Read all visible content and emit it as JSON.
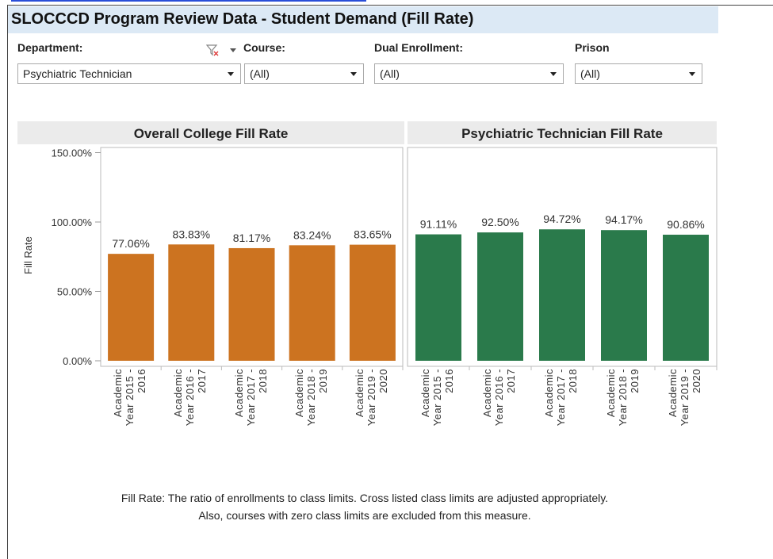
{
  "header": {
    "title": "SLOCCCD Program Review Data - Student Demand (Fill Rate)"
  },
  "filters": [
    {
      "label": "Department:",
      "value": "Psychiatric Technician"
    },
    {
      "label": "Course:",
      "value": "(All)"
    },
    {
      "label": "Dual Enrollment:",
      "value": "(All)"
    },
    {
      "label": "Prison",
      "value": "(All)"
    }
  ],
  "chart_data": [
    {
      "type": "bar",
      "title": "Overall College Fill Rate",
      "y_label": "Fill Rate",
      "color": "#cc7320",
      "categories": [
        "Academic Year 2015 - 2016",
        "Academic Year 2016 - 2017",
        "Academic Year 2017 - 2018",
        "Academic Year 2018 - 2019",
        "Academic Year 2019 - 2020"
      ],
      "values": [
        77.06,
        83.83,
        81.17,
        83.24,
        83.65
      ],
      "value_labels": [
        "77.06%",
        "83.83%",
        "81.17%",
        "83.24%",
        "83.65%"
      ],
      "ylim": [
        0,
        150
      ],
      "yticks": [
        {
          "value": 0,
          "label": "0.00%"
        },
        {
          "value": 50,
          "label": "50.00%"
        },
        {
          "value": 100,
          "label": "100.00%"
        },
        {
          "value": 150,
          "label": "150.00%"
        }
      ]
    },
    {
      "type": "bar",
      "title": "Psychiatric Technician Fill Rate",
      "color": "#2a7a4b",
      "categories": [
        "Academic Year 2015 - 2016",
        "Academic Year 2016 - 2017",
        "Academic Year 2017 - 2018",
        "Academic Year 2018 - 2019",
        "Academic Year 2019 - 2020"
      ],
      "values": [
        91.11,
        92.5,
        94.72,
        94.17,
        90.86
      ],
      "value_labels": [
        "91.11%",
        "92.50%",
        "94.72%",
        "94.17%",
        "90.86%"
      ],
      "ylim": [
        0,
        150
      ]
    }
  ],
  "footnote": [
    "Fill Rate: The ratio of enrollments to class limits. Cross listed class limits are adjusted appropriately.",
    "Also, courses with zero class limits are excluded from this measure."
  ]
}
